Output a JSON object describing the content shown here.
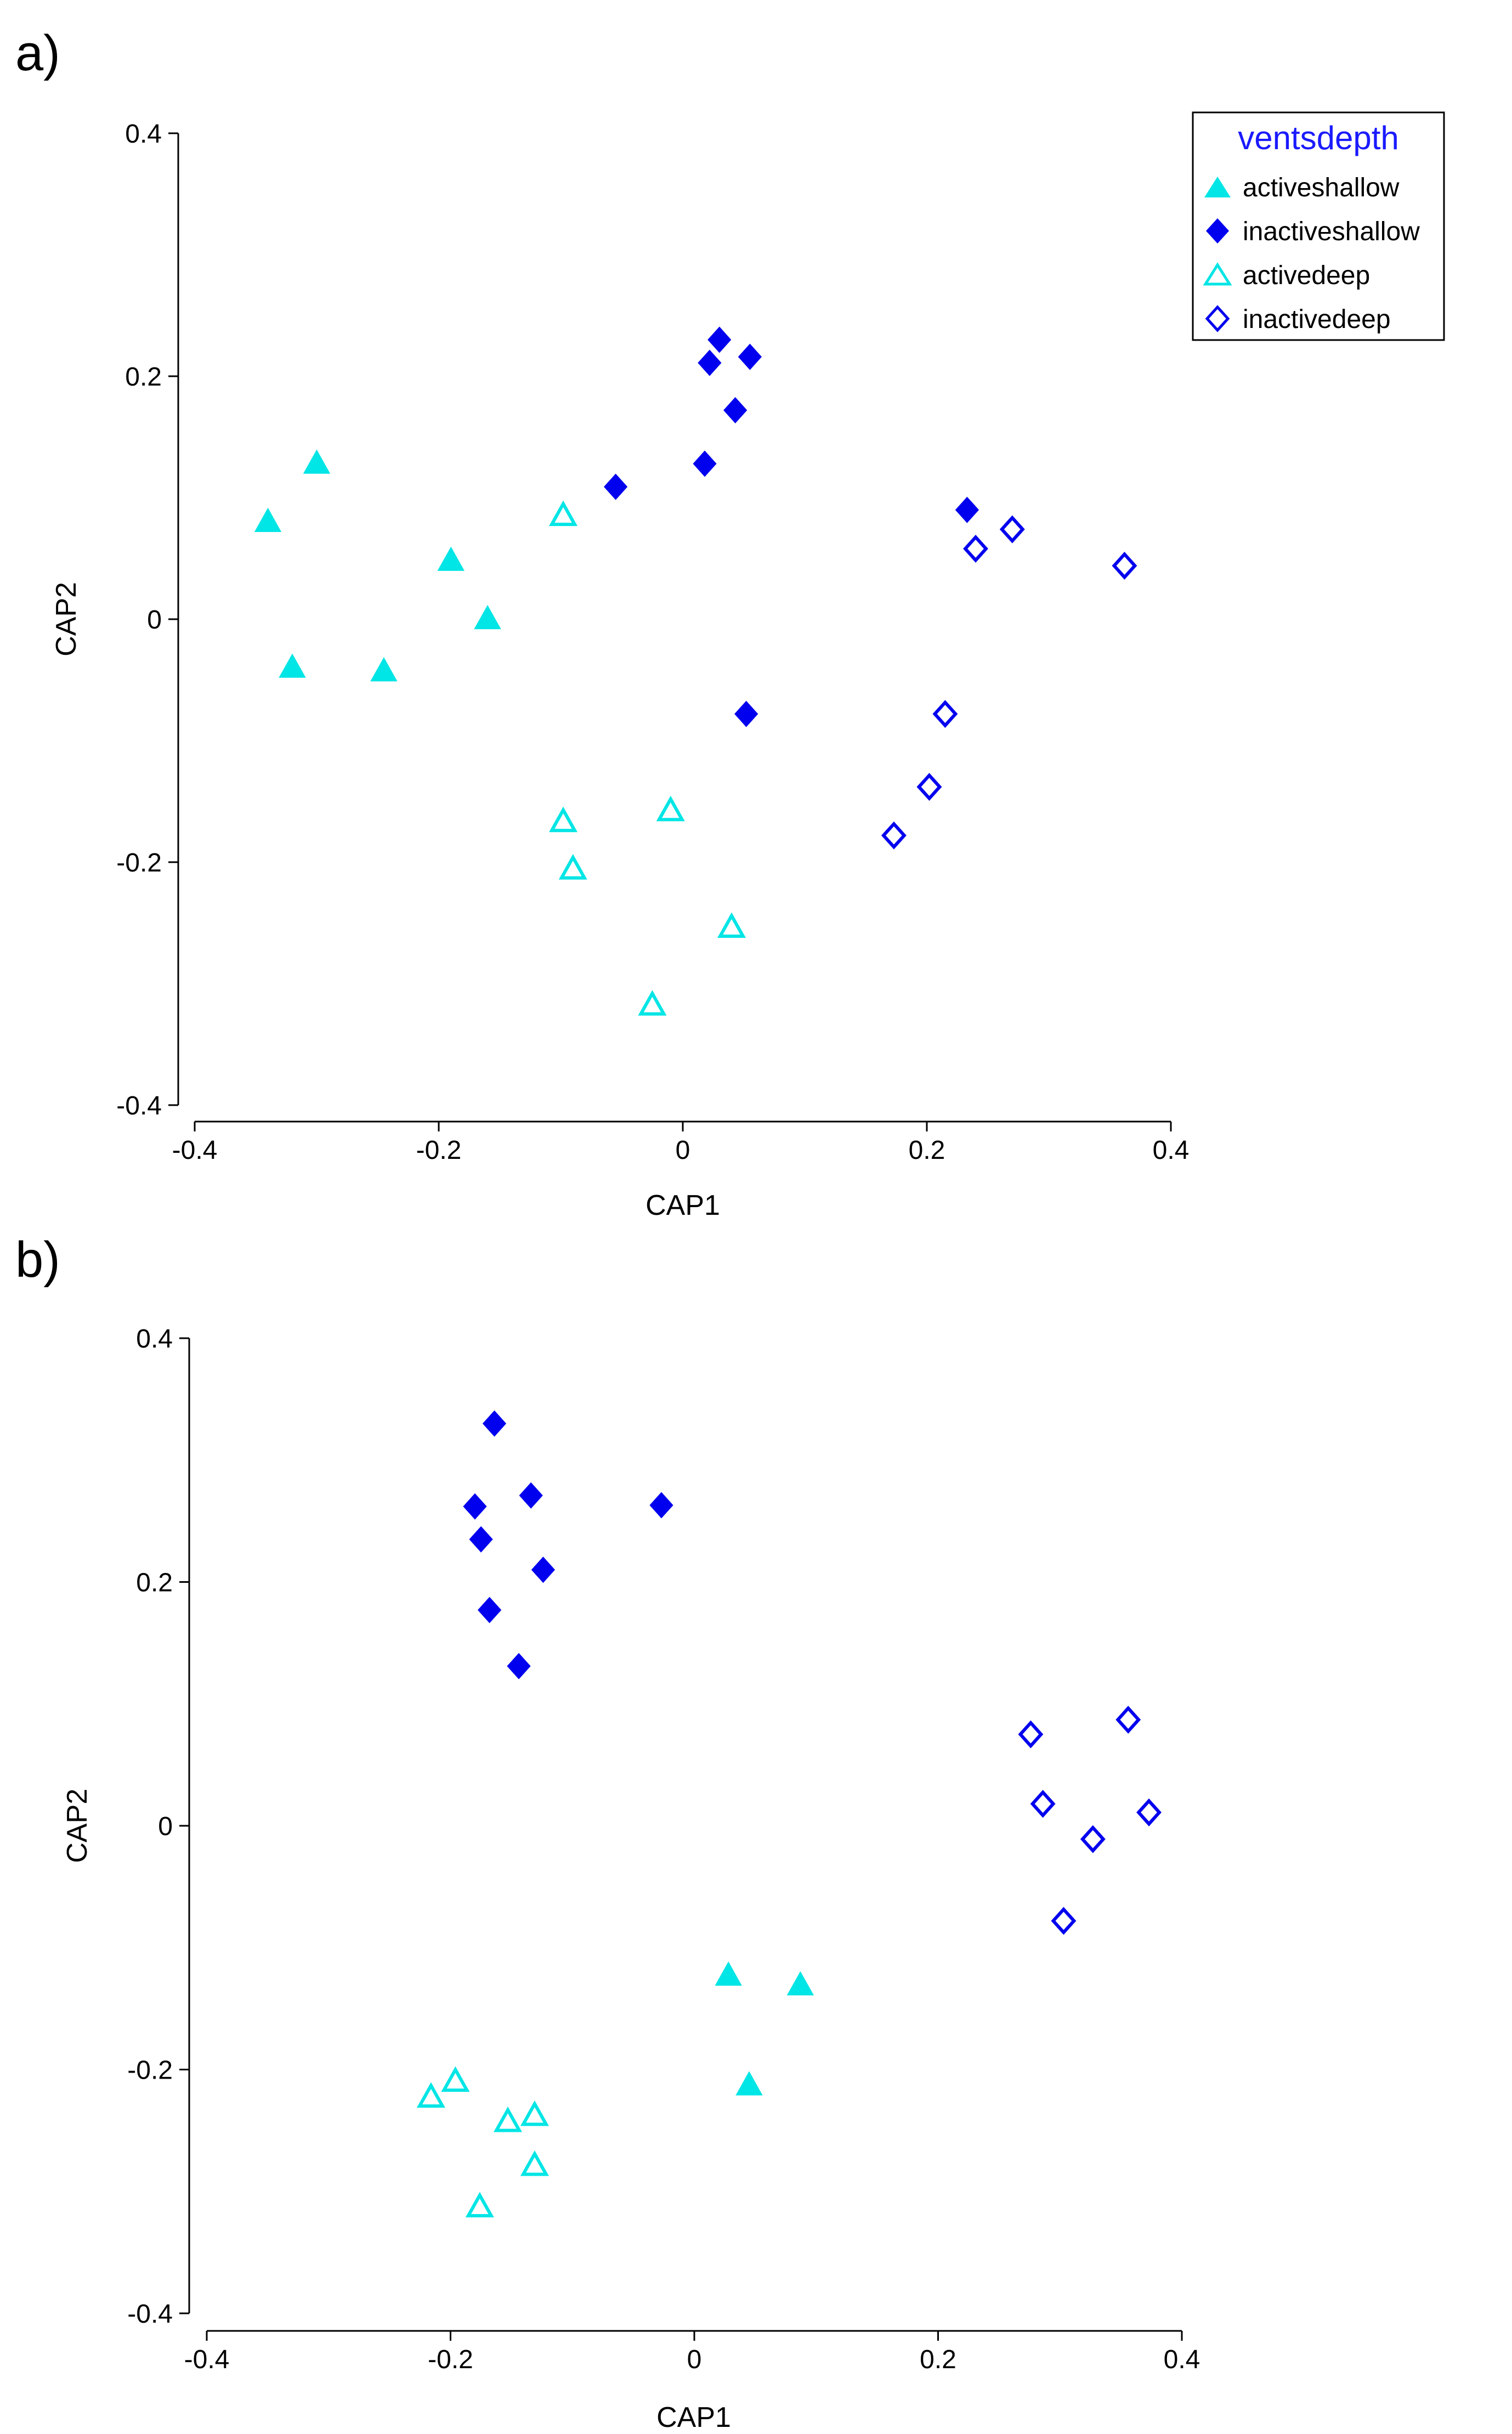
{
  "colors": {
    "active": "#00e5e5",
    "inactive": "#0000ee",
    "legend_title": "#1a1aff",
    "axis": "#000000"
  },
  "chart_data": [
    {
      "panel_label": "a)",
      "type": "scatter",
      "title": "",
      "xlabel": "CAP1",
      "ylabel": "CAP2",
      "xlim": [
        -0.4,
        0.4
      ],
      "ylim": [
        -0.4,
        0.4
      ],
      "xticks": [
        -0.4,
        -0.2,
        0,
        0.2,
        0.4
      ],
      "yticks": [
        -0.4,
        -0.2,
        0,
        0.2,
        0.4
      ],
      "xtick_labels": [
        "-0.4",
        "-0.2",
        "0",
        "0.2",
        "0.4"
      ],
      "ytick_labels": [
        "-0.4",
        "-0.2",
        "0",
        "0.2",
        "0.4"
      ],
      "grid": false,
      "legend": {
        "title": "ventsdepth",
        "placement": "top-right",
        "entries": [
          "activeshallow",
          "inactiveshallow",
          "activedeep",
          "inactivedeep"
        ]
      },
      "series": [
        {
          "name": "activeshallow",
          "marker": "triangle",
          "filled": true,
          "color": "#00e5e5",
          "x": [
            -0.34,
            -0.3,
            -0.32,
            -0.245,
            -0.19,
            -0.16
          ],
          "y": [
            0.08,
            0.128,
            -0.04,
            -0.043,
            0.048,
            0.0
          ]
        },
        {
          "name": "inactiveshallow",
          "marker": "diamond",
          "filled": true,
          "color": "#0000ee",
          "x": [
            0.03,
            0.022,
            0.055,
            0.043,
            -0.055,
            0.018,
            0.233,
            0.052
          ],
          "y": [
            0.23,
            0.211,
            0.216,
            0.172,
            0.109,
            0.128,
            0.09,
            -0.078
          ]
        },
        {
          "name": "activedeep",
          "marker": "triangle",
          "filled": false,
          "color": "#00e5e5",
          "x": [
            -0.098,
            -0.098,
            -0.09,
            -0.01,
            0.04,
            -0.025
          ],
          "y": [
            0.085,
            -0.167,
            -0.206,
            -0.158,
            -0.254,
            -0.318
          ]
        },
        {
          "name": "inactivedeep",
          "marker": "diamond",
          "filled": false,
          "color": "#0000ee",
          "x": [
            0.24,
            0.27,
            0.362,
            0.215,
            0.202,
            0.173
          ],
          "y": [
            0.058,
            0.074,
            0.044,
            -0.078,
            -0.138,
            -0.178
          ]
        }
      ]
    },
    {
      "panel_label": "b)",
      "type": "scatter",
      "title": "",
      "xlabel": "CAP1",
      "ylabel": "CAP2",
      "xlim": [
        -0.4,
        0.4
      ],
      "ylim": [
        -0.4,
        0.4
      ],
      "xticks": [
        -0.4,
        -0.2,
        0,
        0.2,
        0.4
      ],
      "yticks": [
        -0.4,
        -0.2,
        0,
        0.2,
        0.4
      ],
      "xtick_labels": [
        "-0.4",
        "-0.2",
        "0",
        "0.2",
        "0.4"
      ],
      "ytick_labels": [
        "-0.4",
        "-0.2",
        "0",
        "0.2",
        "0.4"
      ],
      "grid": false,
      "series": [
        {
          "name": "activeshallow",
          "marker": "triangle",
          "filled": true,
          "color": "#00e5e5",
          "x": [
            0.028,
            0.087,
            0.045
          ],
          "y": [
            -0.123,
            -0.131,
            -0.213
          ]
        },
        {
          "name": "inactiveshallow",
          "marker": "diamond",
          "filled": true,
          "color": "#0000ee",
          "x": [
            -0.164,
            -0.18,
            -0.175,
            -0.134,
            -0.124,
            -0.168,
            -0.144,
            -0.027
          ],
          "y": [
            0.33,
            0.262,
            0.235,
            0.271,
            0.21,
            0.177,
            0.131,
            0.263
          ]
        },
        {
          "name": "activedeep",
          "marker": "triangle",
          "filled": false,
          "color": "#00e5e5",
          "x": [
            -0.216,
            -0.196,
            -0.153,
            -0.131,
            -0.131,
            -0.176
          ],
          "y": [
            -0.223,
            -0.21,
            -0.243,
            -0.238,
            -0.279,
            -0.313
          ]
        },
        {
          "name": "inactivedeep",
          "marker": "diamond",
          "filled": false,
          "color": "#0000ee",
          "x": [
            0.276,
            0.356,
            0.286,
            0.373,
            0.327,
            0.303
          ],
          "y": [
            0.075,
            0.087,
            0.018,
            0.011,
            -0.011,
            -0.078
          ]
        }
      ]
    }
  ]
}
